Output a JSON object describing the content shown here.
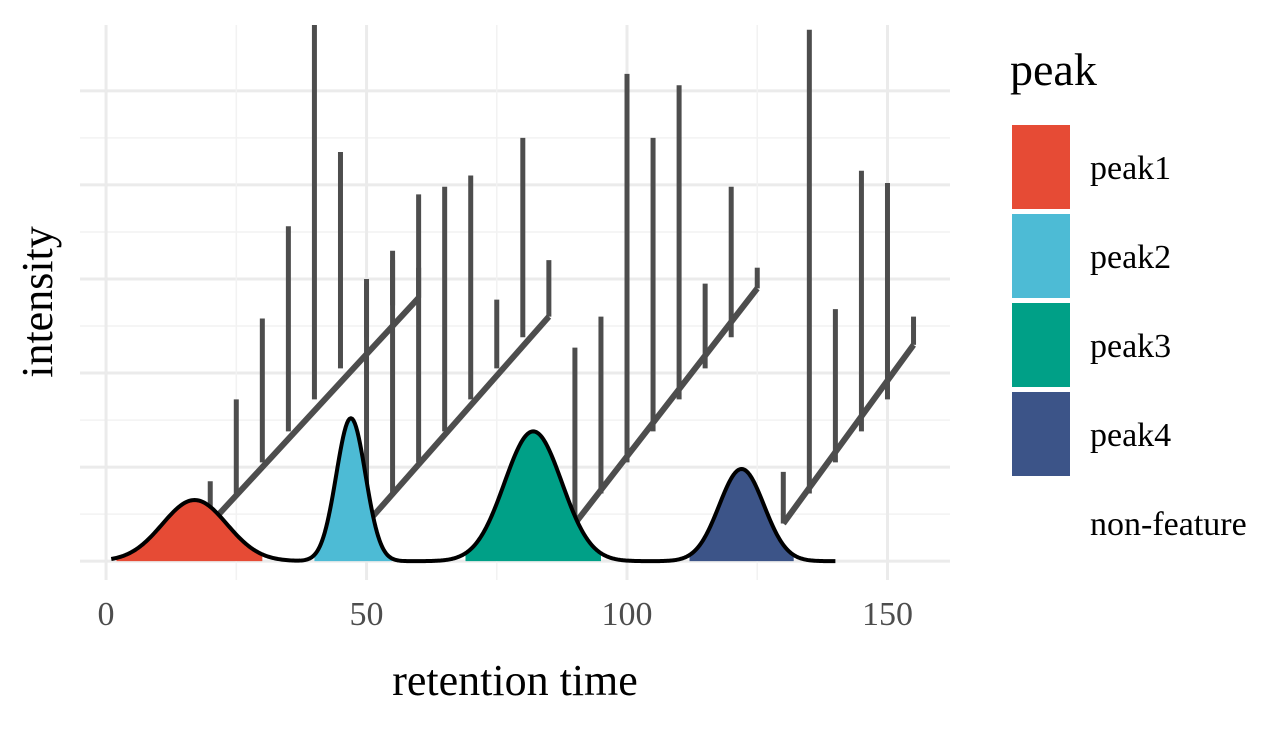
{
  "chart_data": {
    "type": "area",
    "title": "",
    "xlabel": "retention time",
    "ylabel": "intensity",
    "xlim": [
      -5,
      162
    ],
    "ylim": [
      -0.2,
      5.7
    ],
    "x_ticks": [
      0,
      50,
      100,
      150
    ],
    "x_tick_labels": [
      "0",
      "50",
      "100",
      "150"
    ],
    "y_gridlines": [
      0,
      1,
      2,
      3,
      4,
      5
    ],
    "y_tick_labels_shown": false,
    "grid": true,
    "legend": {
      "title": "peak",
      "position": "right",
      "entries": [
        {
          "label": "peak1",
          "color": "#e64b35"
        },
        {
          "label": "peak2",
          "color": "#4dbbd5"
        },
        {
          "label": "peak3",
          "color": "#00a087"
        },
        {
          "label": "peak4",
          "color": "#3c5488"
        },
        {
          "label": "non-feature",
          "color": "#ffffff"
        }
      ]
    },
    "peaks": [
      {
        "name": "peak1",
        "center": 17,
        "height": 0.65,
        "sigma": 6.2,
        "fill_from": 2,
        "fill_to": 30,
        "color": "#e64b35"
      },
      {
        "name": "peak2",
        "center": 47,
        "height": 1.52,
        "sigma": 2.8,
        "fill_from": 40,
        "fill_to": 55,
        "color": "#4dbbd5"
      },
      {
        "name": "peak3",
        "center": 82,
        "height": 1.38,
        "sigma": 5.5,
        "fill_from": 69,
        "fill_to": 95,
        "color": "#00a087"
      },
      {
        "name": "peak4",
        "center": 122,
        "height": 0.98,
        "sigma": 4.3,
        "fill_from": 112,
        "fill_to": 132,
        "color": "#3c5488"
      }
    ],
    "profile_range": [
      1,
      140
    ],
    "mass_spectra": [
      {
        "baseline": [
          [
            20,
            0.4
          ],
          [
            60,
            2.8
          ]
        ],
        "sticks": [
          [
            20,
            0.4,
            0.85
          ],
          [
            25,
            0.72,
            1.72
          ],
          [
            30,
            1.05,
            2.58
          ],
          [
            35,
            1.38,
            3.56
          ],
          [
            40,
            1.72,
            5.7
          ],
          [
            45,
            2.05,
            4.35
          ],
          [
            50,
            2.38,
            3.0
          ],
          [
            55,
            2.72,
            3.3
          ],
          [
            60,
            2.8,
            3.12
          ]
        ]
      },
      {
        "baseline": [
          [
            50,
            0.4
          ],
          [
            85,
            2.6
          ]
        ],
        "sticks": [
          [
            50,
            0.4,
            2.95
          ],
          [
            55,
            0.72,
            3.2
          ],
          [
            60,
            1.05,
            3.9
          ],
          [
            65,
            1.38,
            3.98
          ],
          [
            70,
            1.72,
            4.1
          ],
          [
            75,
            2.05,
            2.78
          ],
          [
            80,
            2.38,
            4.5
          ],
          [
            85,
            2.6,
            3.2
          ],
          [
            85,
            1.3,
            1.3
          ]
        ]
      },
      {
        "baseline": [
          [
            90,
            0.4
          ],
          [
            125,
            2.9
          ]
        ],
        "sticks": [
          [
            90,
            0.4,
            2.27
          ],
          [
            95,
            0.72,
            2.6
          ],
          [
            100,
            1.05,
            5.18
          ],
          [
            105,
            1.38,
            4.5
          ],
          [
            110,
            1.72,
            5.06
          ],
          [
            115,
            2.05,
            2.95
          ],
          [
            120,
            2.38,
            3.98
          ],
          [
            125,
            2.9,
            3.12
          ]
        ]
      },
      {
        "baseline": [
          [
            130,
            0.4
          ],
          [
            155,
            2.3
          ]
        ],
        "sticks": [
          [
            130,
            0.4,
            0.95
          ],
          [
            135,
            0.72,
            5.65
          ],
          [
            140,
            1.05,
            2.68
          ],
          [
            145,
            1.38,
            4.15
          ],
          [
            150,
            1.72,
            4.02
          ],
          [
            155,
            2.3,
            2.6
          ]
        ]
      }
    ]
  }
}
